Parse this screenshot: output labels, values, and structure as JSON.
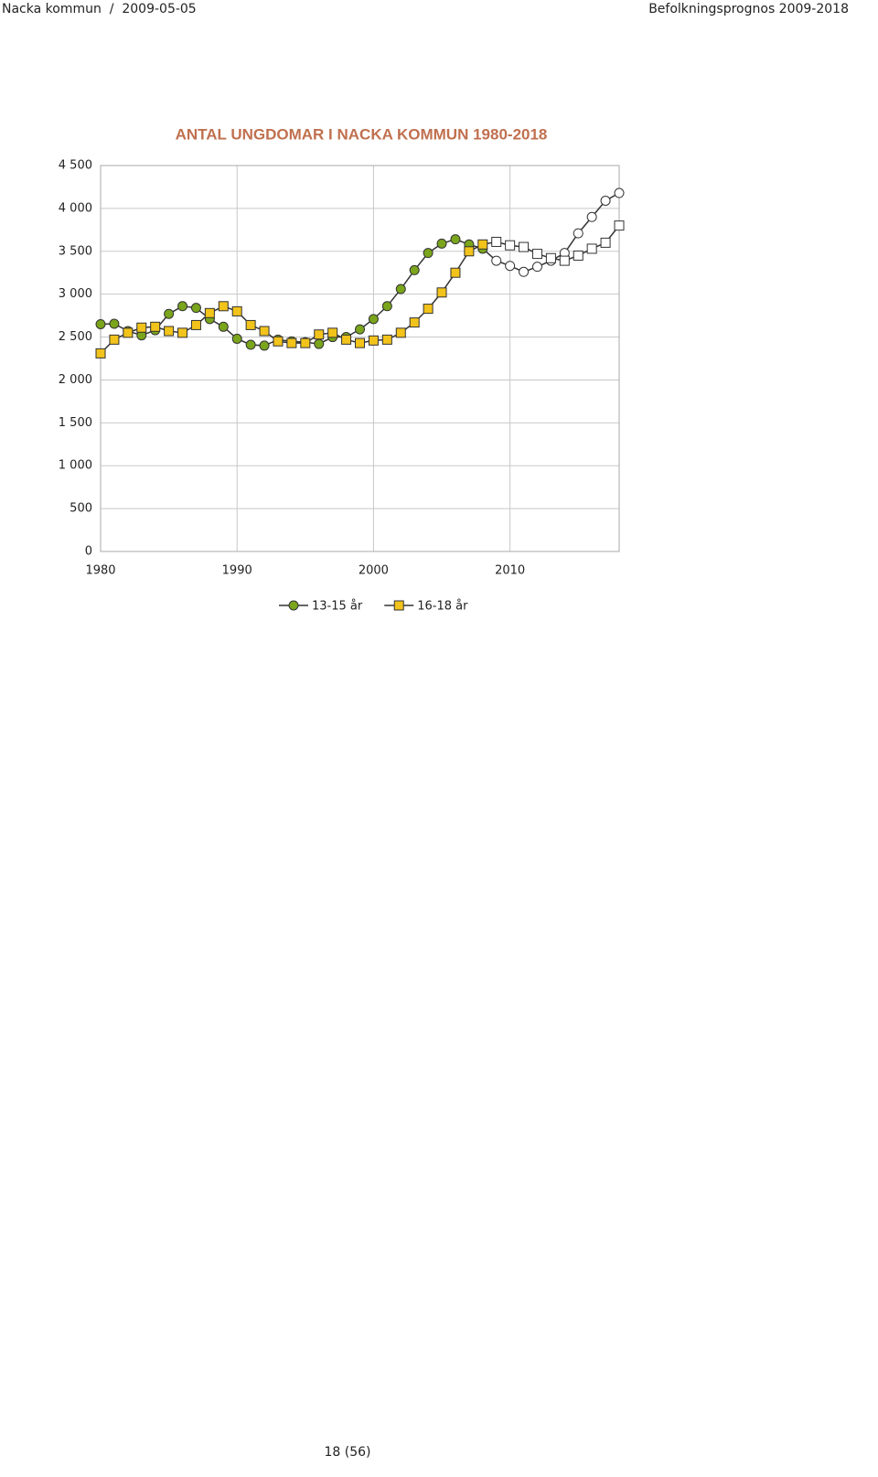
{
  "header": {
    "left": "Nacka kommun  /  2009-05-05",
    "right": "Befolkningsprognos 2009-2018"
  },
  "chart_data": {
    "type": "line",
    "title": "ANTAL UNGDOMAR I NACKA KOMMUN 1980-2018",
    "x": [
      1980,
      1981,
      1982,
      1983,
      1984,
      1985,
      1986,
      1987,
      1988,
      1989,
      1990,
      1991,
      1992,
      1993,
      1994,
      1995,
      1996,
      1997,
      1998,
      1999,
      2000,
      2001,
      2002,
      2003,
      2004,
      2005,
      2006,
      2007,
      2008,
      2009,
      2010,
      2011,
      2012,
      2013,
      2014,
      2015,
      2016,
      2017,
      2018
    ],
    "series": [
      {
        "name": "13-15 år",
        "color": "#7aa51c",
        "marker": "circle",
        "values": [
          2650,
          2655,
          2570,
          2520,
          2580,
          2770,
          2860,
          2840,
          2710,
          2620,
          2480,
          2410,
          2400,
          2470,
          2450,
          2440,
          2420,
          2500,
          2500,
          2590,
          2710,
          2860,
          3060,
          3280,
          3480,
          3590,
          3640,
          3580,
          3530,
          3390,
          3330,
          3260,
          3320,
          3390,
          3480,
          3710,
          3900,
          4090,
          4180
        ]
      },
      {
        "name": "16-18 år",
        "color": "#f2c31a",
        "marker": "square",
        "values": [
          2310,
          2470,
          2550,
          2610,
          2620,
          2570,
          2550,
          2640,
          2780,
          2860,
          2800,
          2640,
          2570,
          2450,
          2430,
          2430,
          2530,
          2550,
          2470,
          2430,
          2460,
          2470,
          2550,
          2670,
          2830,
          3020,
          3250,
          3500,
          3580,
          3610,
          3570,
          3550,
          3470,
          3420,
          3390,
          3450,
          3530,
          3600,
          3800
        ]
      }
    ],
    "forecast_start": 2009,
    "forecast_color": "#ffffff",
    "xlim": [
      1980,
      2018
    ],
    "xticks": [
      1980,
      1990,
      2000,
      2010
    ],
    "ylim": [
      0,
      4500
    ],
    "yticks": [
      0,
      500,
      {
        "value": 1000,
        "label": "1 000"
      },
      {
        "value": 1500,
        "label": "1 500"
      },
      {
        "value": 2000,
        "label": "2 000"
      },
      {
        "value": 2500,
        "label": "2 500"
      },
      {
        "value": 3000,
        "label": "3 000"
      },
      {
        "value": 3500,
        "label": "3 500"
      },
      {
        "value": 4000,
        "label": "4 000"
      },
      {
        "value": 4500,
        "label": "4 500"
      }
    ],
    "grid": true,
    "legend": "bottom"
  },
  "footer": {
    "page": "18 (56)"
  }
}
